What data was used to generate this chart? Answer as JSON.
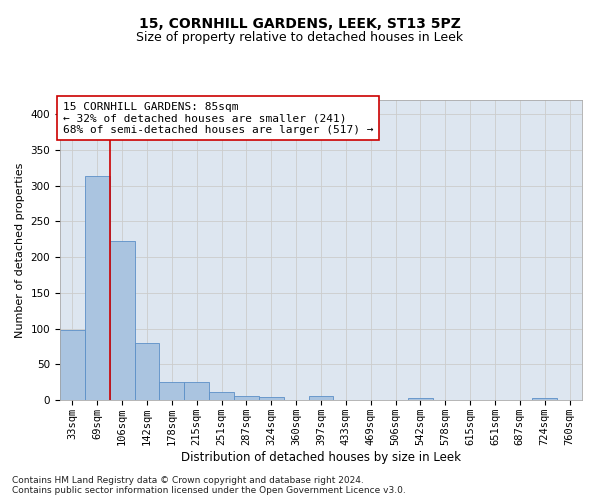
{
  "title": "15, CORNHILL GARDENS, LEEK, ST13 5PZ",
  "subtitle": "Size of property relative to detached houses in Leek",
  "xlabel": "Distribution of detached houses by size in Leek",
  "ylabel": "Number of detached properties",
  "categories": [
    "33sqm",
    "69sqm",
    "106sqm",
    "142sqm",
    "178sqm",
    "215sqm",
    "251sqm",
    "287sqm",
    "324sqm",
    "360sqm",
    "397sqm",
    "433sqm",
    "469sqm",
    "506sqm",
    "542sqm",
    "578sqm",
    "615sqm",
    "651sqm",
    "687sqm",
    "724sqm",
    "760sqm"
  ],
  "values": [
    98,
    313,
    222,
    80,
    25,
    25,
    11,
    5,
    4,
    0,
    5,
    0,
    0,
    0,
    3,
    0,
    0,
    0,
    0,
    3,
    0
  ],
  "bar_color": "#aac4e0",
  "bar_edge_color": "#5b8fc7",
  "vline_x_index": 1.5,
  "vline_color": "#cc0000",
  "annotation_text": "15 CORNHILL GARDENS: 85sqm\n← 32% of detached houses are smaller (241)\n68% of semi-detached houses are larger (517) →",
  "annotation_box_color": "#ffffff",
  "annotation_box_edge": "#cc0000",
  "ylim": [
    0,
    420
  ],
  "yticks": [
    0,
    50,
    100,
    150,
    200,
    250,
    300,
    350,
    400
  ],
  "grid_color": "#cccccc",
  "bg_color": "#dde6f0",
  "footnote": "Contains HM Land Registry data © Crown copyright and database right 2024.\nContains public sector information licensed under the Open Government Licence v3.0.",
  "title_fontsize": 10,
  "subtitle_fontsize": 9,
  "xlabel_fontsize": 8.5,
  "ylabel_fontsize": 8,
  "tick_fontsize": 7.5,
  "annot_fontsize": 8,
  "footnote_fontsize": 6.5
}
